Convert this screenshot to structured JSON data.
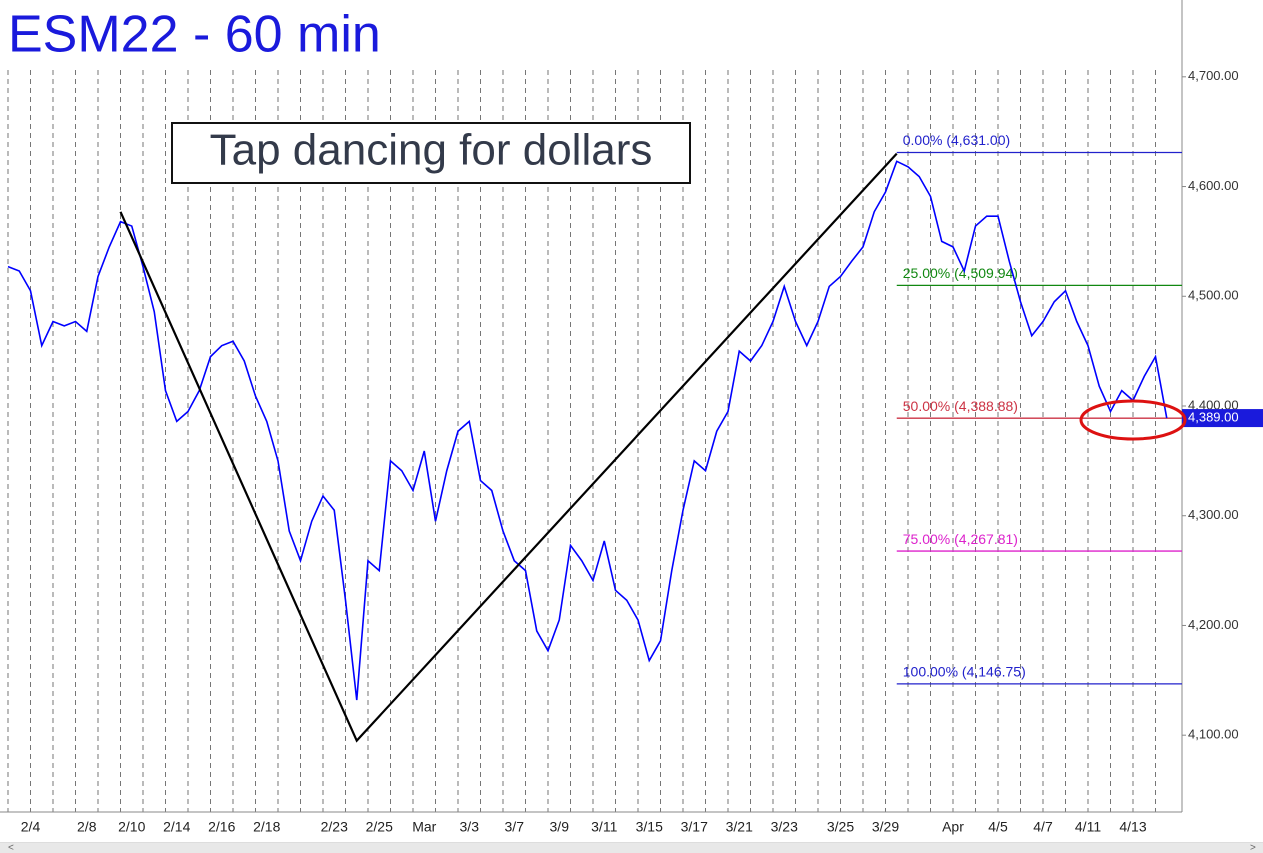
{
  "chart_data": {
    "type": "line",
    "title": "ESM22 - 60 min",
    "annotation": "Tap dancing for dollars",
    "categories": [
      null,
      null,
      "2/4",
      null,
      null,
      null,
      null,
      "2/8",
      null,
      null,
      null,
      "2/10",
      null,
      null,
      null,
      "2/14",
      null,
      null,
      null,
      "2/16",
      null,
      null,
      null,
      "2/18",
      null,
      null,
      null,
      null,
      null,
      "2/23",
      null,
      null,
      null,
      "2/25",
      null,
      null,
      null,
      "Mar",
      null,
      null,
      null,
      "3/3",
      null,
      null,
      null,
      "3/7",
      null,
      null,
      null,
      "3/9",
      null,
      null,
      null,
      "3/11",
      null,
      null,
      null,
      "3/15",
      null,
      null,
      null,
      "3/17",
      null,
      null,
      null,
      "3/21",
      null,
      null,
      null,
      "3/23",
      null,
      null,
      null,
      null,
      "3/25",
      null,
      null,
      null,
      "3/29",
      null,
      null,
      null,
      null,
      null,
      "Apr",
      null,
      null,
      null,
      "4/5",
      null,
      null,
      null,
      "4/7",
      null,
      null,
      null,
      "4/11",
      null,
      null,
      null,
      "4/13",
      null,
      null,
      null
    ],
    "series": [
      {
        "name": "ESM22",
        "color": "#0000ff",
        "values": [
          4527,
          4523,
          4505,
          4455,
          4477,
          4473,
          4477,
          4468,
          4518,
          4545,
          4568,
          4564,
          4527,
          4486,
          4414,
          4386,
          4395,
          4414,
          4445,
          4455,
          4459,
          4441,
          4409,
          4386,
          4350,
          4286,
          4259,
          4295,
          4318,
          4305,
          4223,
          4132,
          4259,
          4250,
          4350,
          4341,
          4323,
          4359,
          4295,
          4341,
          4377,
          4386,
          4332,
          4323,
          4286,
          4259,
          4250,
          4195,
          4177,
          4205,
          4273,
          4259,
          4241,
          4277,
          4232,
          4223,
          4205,
          4168,
          4186,
          4250,
          4305,
          4350,
          4341,
          4377,
          4395,
          4450,
          4441,
          4455,
          4477,
          4509,
          4477,
          4455,
          4477,
          4509,
          4518,
          4532,
          4545,
          4577,
          4595,
          4623,
          4618,
          4609,
          4591,
          4550,
          4545,
          4523,
          4564,
          4573,
          4573,
          4532,
          4495,
          4464,
          4477,
          4495,
          4505,
          4477,
          4455,
          4418,
          4395,
          4414,
          4405,
          4427,
          4445,
          4389
        ]
      }
    ],
    "trend_line": {
      "indices": [
        10,
        31,
        79
      ],
      "values": [
        4577,
        4095,
        4630
      ],
      "color": "#000000"
    },
    "fib_start_index": 79,
    "fib_levels": [
      {
        "label": "0.00% (4,631.00)",
        "value": 4631,
        "color": "#2222cc"
      },
      {
        "label": "25.00% (4,509.94)",
        "value": 4509.94,
        "color": "#118811"
      },
      {
        "label": "50.00% (4,388.88)",
        "value": 4388.88,
        "color": "#cc3344"
      },
      {
        "label": "75.00% (4,267.81)",
        "value": 4267.81,
        "color": "#dd22cc"
      },
      {
        "label": "100.00% (4,146.75)",
        "value": 4146.75,
        "color": "#2222cc"
      }
    ],
    "last_price": {
      "value": 4389,
      "label": "4,389.00"
    },
    "ylim": [
      4030,
      4770
    ],
    "yticks": [
      {
        "value": 4100,
        "label": "4,100.00"
      },
      {
        "value": 4200,
        "label": "4,200.00"
      },
      {
        "value": 4300,
        "label": "4,300.00"
      },
      {
        "value": 4400,
        "label": "4,400.00"
      },
      {
        "value": 4500,
        "label": "4,500.00"
      },
      {
        "value": 4600,
        "label": "4,600.00"
      },
      {
        "value": 4700,
        "label": "4,700.00"
      }
    ]
  }
}
